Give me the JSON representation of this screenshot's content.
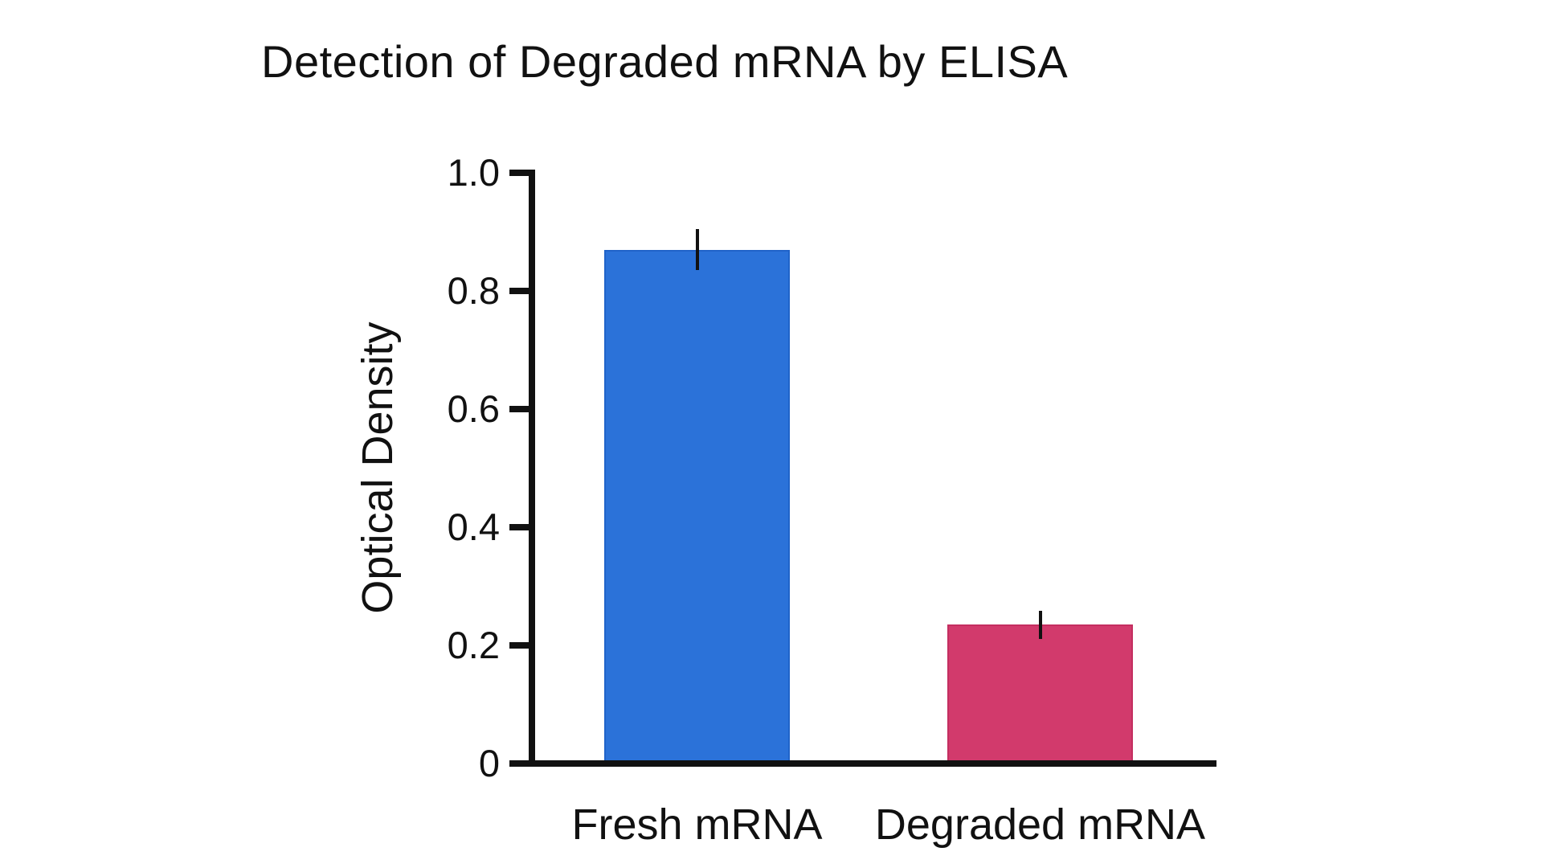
{
  "title": "Detection of Degraded mRNA by ELISA",
  "chart_data": {
    "type": "bar",
    "title": "Detection of Degraded mRNA by ELISA",
    "xlabel": "",
    "ylabel": "Optical Density",
    "ylim": [
      0,
      1.0
    ],
    "grid": false,
    "legend_position": "none",
    "yticks": [
      {
        "value": 1.0,
        "label": "1.0"
      },
      {
        "value": 0.8,
        "label": "0.8"
      },
      {
        "value": 0.6,
        "label": "0.6"
      },
      {
        "value": 0.4,
        "label": "0.4"
      },
      {
        "value": 0.2,
        "label": "0.2"
      },
      {
        "value": 0.0,
        "label": "0"
      }
    ],
    "categories": [
      "Fresh mRNA",
      "Degraded mRNA"
    ],
    "bars": [
      {
        "category": "Fresh mRNA",
        "value": 0.87,
        "error": 0.035,
        "color": "#2b72d9",
        "edge_color": "#2063c9"
      },
      {
        "category": "Degraded mRNA",
        "value": 0.235,
        "error": 0.024,
        "color": "#d23a6c",
        "edge_color": "#c42e60"
      }
    ],
    "error_bar_color": "#111111"
  },
  "colors": {
    "background": "#ffffff",
    "text": "#111111",
    "axis": "#111111"
  }
}
